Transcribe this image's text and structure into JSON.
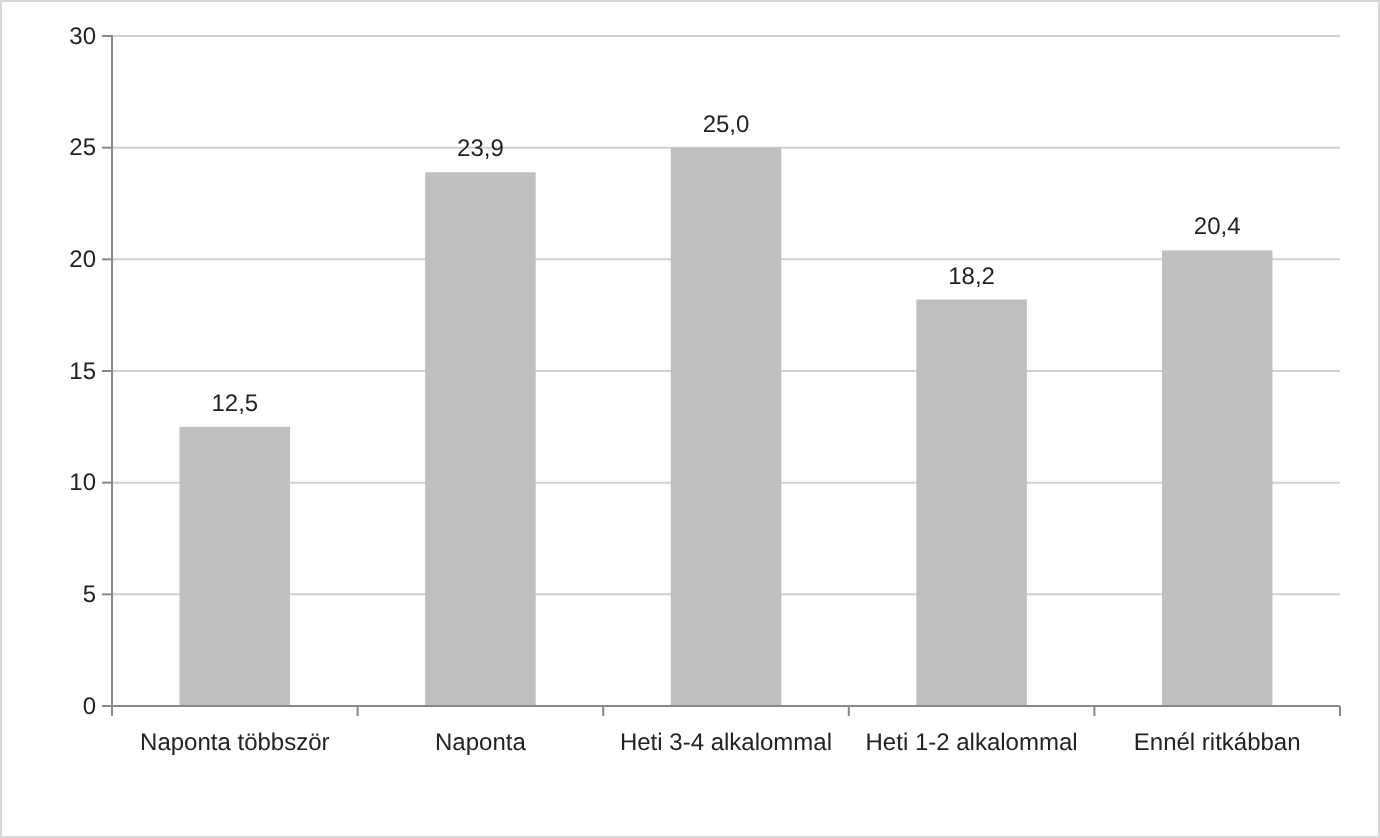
{
  "chart_data": {
    "type": "bar",
    "categories": [
      "Naponta többször",
      "Naponta",
      "Heti 3-4 alkalommal",
      "Heti 1-2 alkalommal",
      "Ennél ritkábban"
    ],
    "values": [
      12.5,
      23.9,
      25.0,
      18.2,
      20.4
    ],
    "value_labels": [
      "12,5",
      "23,9",
      "25,0",
      "18,2",
      "20,4"
    ],
    "color": "#bfbfbf",
    "ylim": [
      0,
      30
    ],
    "yticks": [
      0,
      5,
      10,
      15,
      20,
      25,
      30
    ],
    "grid": "y"
  }
}
